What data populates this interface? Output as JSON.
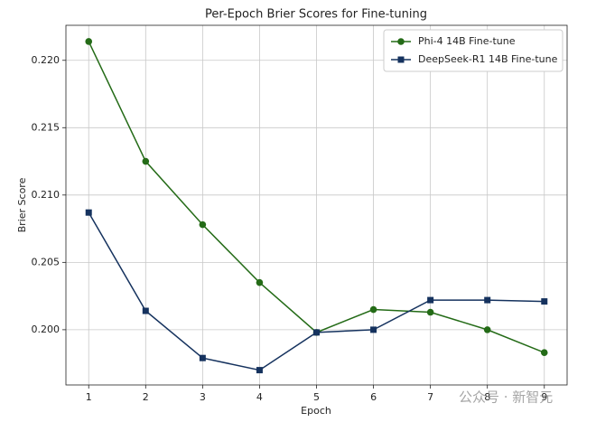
{
  "chart_data": {
    "type": "line",
    "title": "Per-Epoch Brier Scores for Fine-tuning",
    "xlabel": "Epoch",
    "ylabel": "Brier Score",
    "x": [
      1,
      2,
      3,
      4,
      5,
      6,
      7,
      8,
      9
    ],
    "series": [
      {
        "name": "Phi-4 14B Fine-tune",
        "color": "#246b17",
        "marker": "circle",
        "values": [
          0.2214,
          0.2125,
          0.2078,
          0.2035,
          0.1998,
          0.2015,
          0.2013,
          0.2,
          0.1983
        ]
      },
      {
        "name": "DeepSeek-R1 14B Fine-tune",
        "color": "#15325e",
        "marker": "square",
        "values": [
          0.2087,
          0.2014,
          0.1979,
          0.197,
          0.1998,
          0.2,
          0.2022,
          0.2022,
          0.2021
        ]
      }
    ],
    "xlim": [
      0.6,
      9.4
    ],
    "ylim": [
      0.1959,
      0.2226
    ],
    "xticks": [
      1,
      2,
      3,
      4,
      5,
      6,
      7,
      8,
      9
    ],
    "yticks": [
      {
        "value": 0.2,
        "label": "0.200"
      },
      0.205,
      {
        "value": 0.21,
        "label": "0.210"
      },
      0.215,
      {
        "value": 0.22,
        "label": "0.220"
      }
    ],
    "grid": true,
    "legend": "upper right",
    "watermark": "公众号 · 新智元"
  }
}
